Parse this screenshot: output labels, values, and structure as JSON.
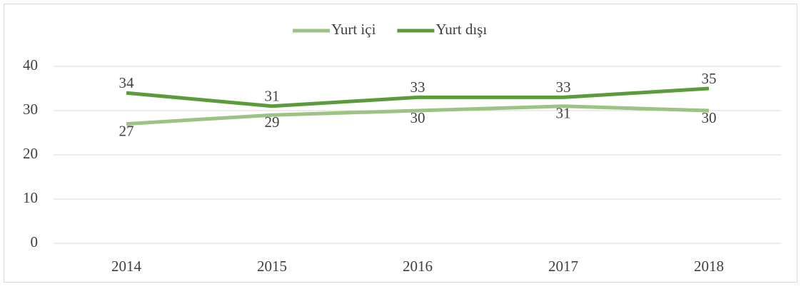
{
  "chart_data": {
    "type": "line",
    "categories": [
      "2014",
      "2015",
      "2016",
      "2017",
      "2018"
    ],
    "series": [
      {
        "name": "Yurt içi",
        "color": "#9dc384",
        "values": [
          27,
          29,
          30,
          31,
          30
        ]
      },
      {
        "name": "Yurt dışı",
        "color": "#5b9b3c",
        "values": [
          34,
          31,
          33,
          33,
          35
        ]
      }
    ],
    "ylim": [
      0,
      40
    ],
    "yticks": [
      0,
      10,
      20,
      30,
      40
    ],
    "grid": true,
    "legend": "top"
  }
}
